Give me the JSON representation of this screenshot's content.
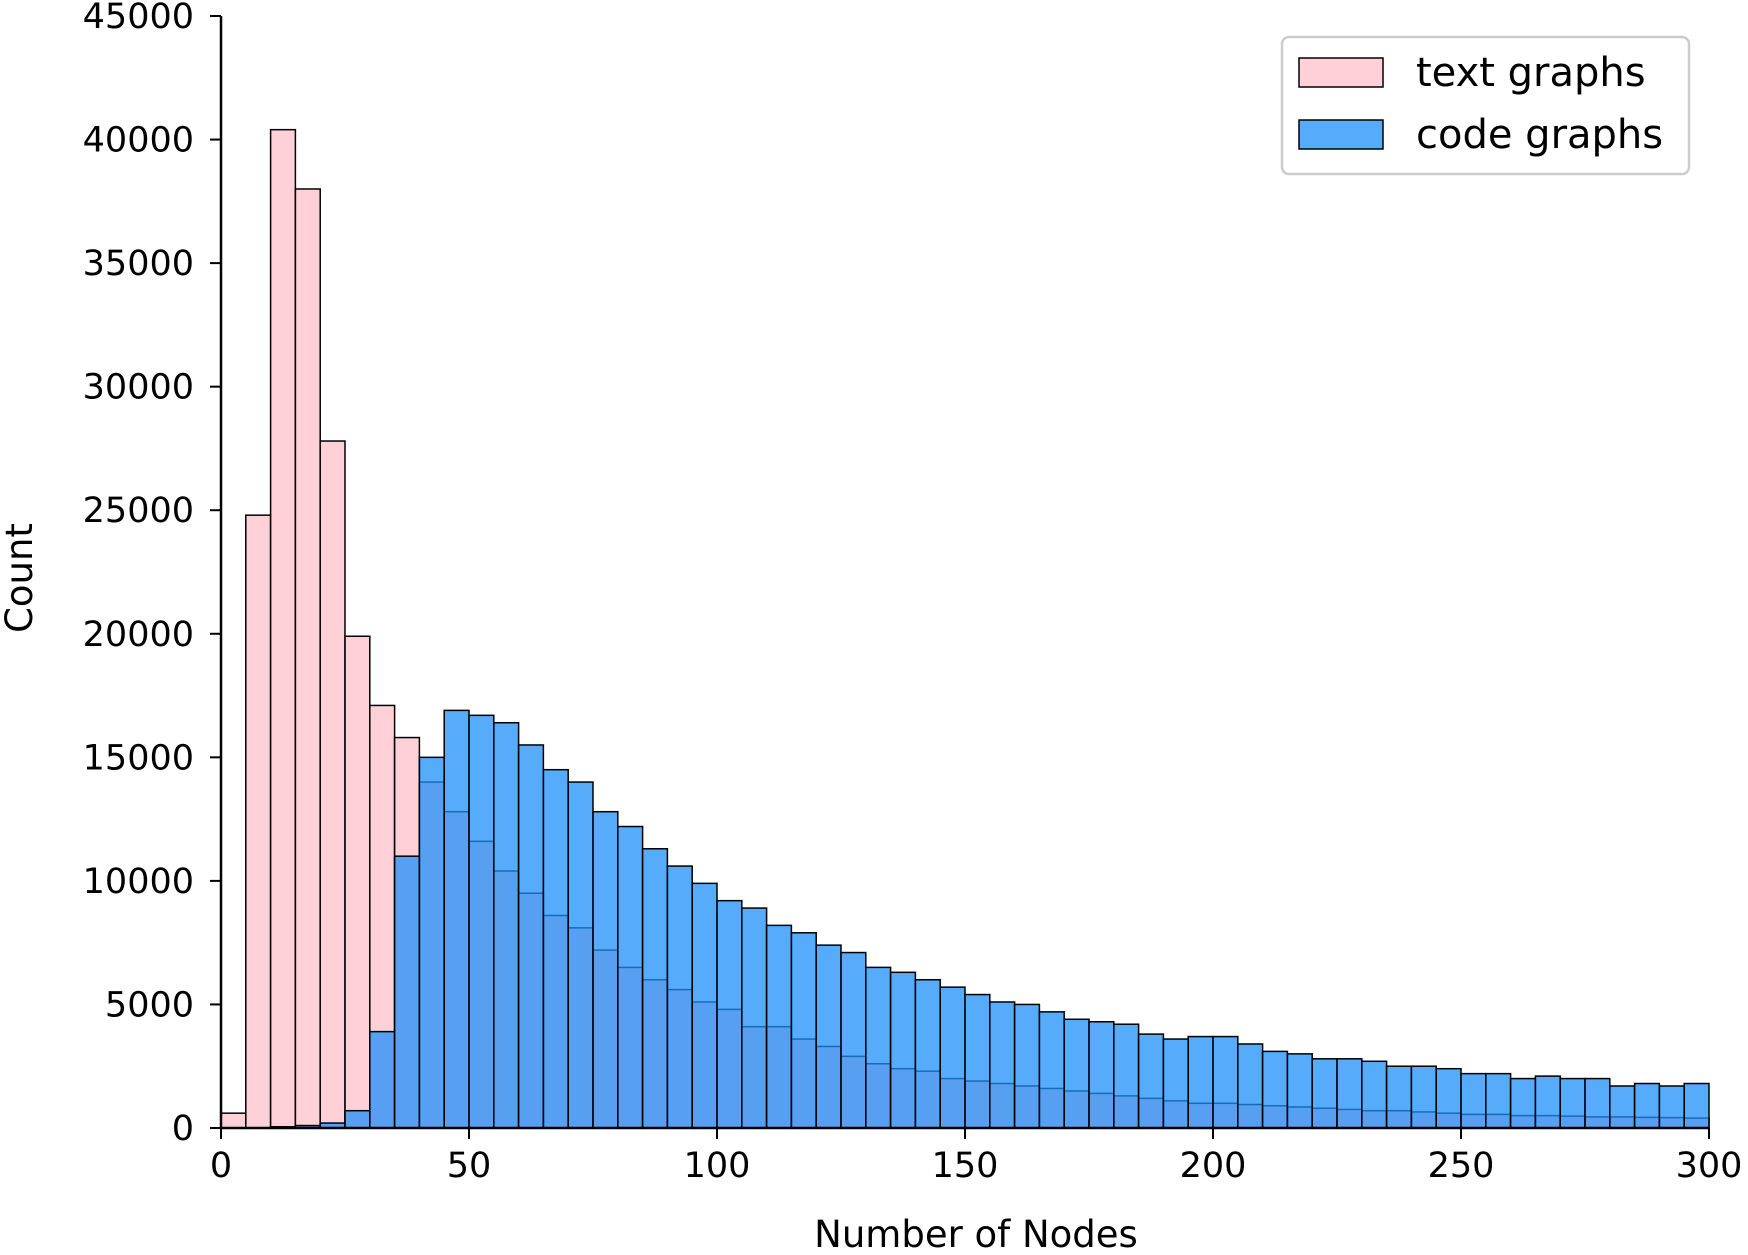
{
  "chart_data": {
    "type": "bar",
    "subtype": "overlapping-histogram",
    "title": "",
    "xlabel": "Number of Nodes",
    "ylabel": "Count",
    "xlim": [
      0,
      300
    ],
    "ylim": [
      0,
      45000
    ],
    "xticks": [
      0,
      50,
      100,
      150,
      200,
      250,
      300
    ],
    "yticks": [
      0,
      5000,
      10000,
      15000,
      20000,
      25000,
      30000,
      35000,
      40000,
      45000
    ],
    "bin_width": 5,
    "grid": false,
    "legend": {
      "position": "top-right"
    },
    "series": [
      {
        "name": "text graphs",
        "color": "#ffc0cb",
        "bin_starts": [
          0,
          5,
          10,
          15,
          20,
          25,
          30,
          35,
          40,
          45,
          50,
          55,
          60,
          65,
          70,
          75,
          80,
          85,
          90,
          95,
          100,
          105,
          110,
          115,
          120,
          125,
          130,
          135,
          140,
          145,
          150,
          155,
          160,
          165,
          170,
          175,
          180,
          185,
          190,
          195,
          200,
          205,
          210,
          215,
          220,
          225,
          230,
          235,
          240,
          245,
          250,
          255,
          260,
          265,
          270,
          275,
          280,
          285,
          290,
          295
        ],
        "values": [
          600,
          24800,
          40400,
          38000,
          27800,
          19900,
          17100,
          15800,
          14000,
          12800,
          11600,
          10400,
          9500,
          8600,
          8100,
          7200,
          6500,
          6000,
          5600,
          5100,
          4800,
          4100,
          4100,
          3600,
          3300,
          2900,
          2600,
          2400,
          2300,
          2000,
          1900,
          1800,
          1700,
          1600,
          1500,
          1400,
          1300,
          1200,
          1100,
          1000,
          1000,
          950,
          900,
          850,
          800,
          750,
          700,
          700,
          650,
          600,
          550,
          550,
          500,
          500,
          480,
          450,
          450,
          430,
          420,
          400
        ]
      },
      {
        "name": "code graphs",
        "color": "#1f8ffa",
        "bin_starts": [
          0,
          5,
          10,
          15,
          20,
          25,
          30,
          35,
          40,
          45,
          50,
          55,
          60,
          65,
          70,
          75,
          80,
          85,
          90,
          95,
          100,
          105,
          110,
          115,
          120,
          125,
          130,
          135,
          140,
          145,
          150,
          155,
          160,
          165,
          170,
          175,
          180,
          185,
          190,
          195,
          200,
          205,
          210,
          215,
          220,
          225,
          230,
          235,
          240,
          245,
          250,
          255,
          260,
          265,
          270,
          275,
          280,
          285,
          290,
          295
        ],
        "values": [
          0,
          0,
          50,
          100,
          200,
          700,
          3900,
          11000,
          15000,
          16900,
          16700,
          16400,
          15500,
          14500,
          14000,
          12800,
          12200,
          11300,
          10600,
          9900,
          9200,
          8900,
          8200,
          7900,
          7400,
          7100,
          6500,
          6300,
          6000,
          5700,
          5400,
          5100,
          5000,
          4700,
          4400,
          4300,
          4200,
          3800,
          3600,
          3700,
          3700,
          3400,
          3100,
          3000,
          2800,
          2800,
          2700,
          2500,
          2500,
          2400,
          2200,
          2200,
          2000,
          2100,
          2000,
          2000,
          1700,
          1800,
          1700,
          1800
        ]
      }
    ]
  }
}
